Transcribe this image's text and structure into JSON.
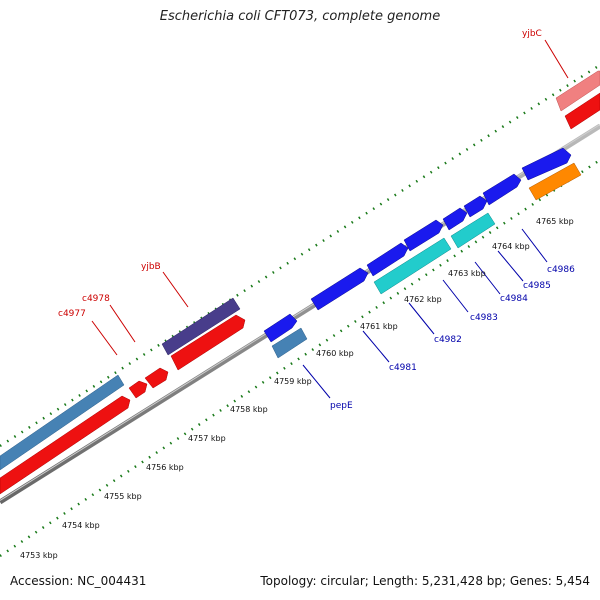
{
  "title": "Escherichia coli CFT073, complete genome",
  "footer": {
    "accession": "Accession: NC_004431",
    "summary": "Topology: circular; Length: 5,231,428 bp; Genes: 5,454"
  },
  "colors": {
    "backbone": "#8c8c8c",
    "tick_outer": "#1a7a1a",
    "tick_inner": "#1a7a1a",
    "label_top": "#cc0000",
    "label_bottom": "#0000aa",
    "red": "#ee1111",
    "pink": "#f08080",
    "steelblue": "#4682b4",
    "darkslate": "#483d8b",
    "blue": "#1a1aee",
    "cyan": "#22cccc",
    "orange": "#ff8800"
  },
  "kbp_labels": [
    "4753 kbp",
    "4754 kbp",
    "4755 kbp",
    "4756 kbp",
    "4757 kbp",
    "4758 kbp",
    "4759 kbp",
    "4760 kbp",
    "4761 kbp",
    "4762 kbp",
    "4763 kbp",
    "4764 kbp",
    "4765 kbp"
  ],
  "top_gene_labels": [
    "yjbC",
    "yjbB",
    "c4978",
    "c4977"
  ],
  "bottom_gene_labels": [
    "pepE",
    "c4981",
    "c4982",
    "c4983",
    "c4984",
    "c4985",
    "c4986"
  ]
}
